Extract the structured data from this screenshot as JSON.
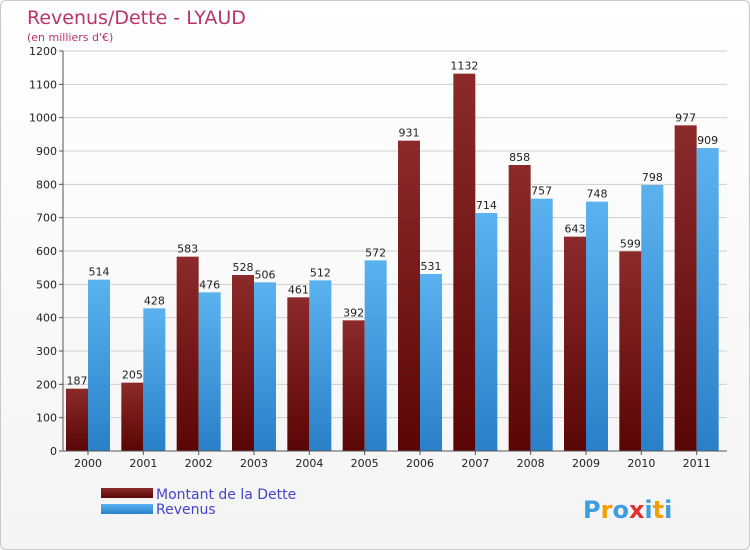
{
  "chart_data": {
    "type": "bar",
    "title": "Revenus/Dette - LYAUD",
    "subtitle": "(en milliers d'€)",
    "categories": [
      "2000",
      "2001",
      "2002",
      "2003",
      "2004",
      "2005",
      "2006",
      "2007",
      "2008",
      "2009",
      "2010",
      "2011"
    ],
    "series": [
      {
        "name": "Montant de la Dette",
        "color": "#7a1c1c",
        "values": [
          187,
          205,
          583,
          528,
          461,
          392,
          931,
          1132,
          858,
          643,
          599,
          977
        ]
      },
      {
        "name": "Revenus",
        "color": "#3d9ee0",
        "values": [
          514,
          428,
          476,
          506,
          512,
          572,
          531,
          714,
          757,
          748,
          798,
          909
        ]
      }
    ],
    "ylim": [
      0,
      1200
    ],
    "yticks": [
      0,
      100,
      200,
      300,
      400,
      500,
      600,
      700,
      800,
      900,
      1000,
      1100,
      1200
    ],
    "grid": true,
    "legend_position": "bottom-left"
  },
  "logo": {
    "text": "Proxiti",
    "colors": [
      "#3d9ee0",
      "#f0a000",
      "#3d9ee0",
      "#e03030",
      "#3d9ee0",
      "#f0a000",
      "#3d9ee0"
    ]
  }
}
